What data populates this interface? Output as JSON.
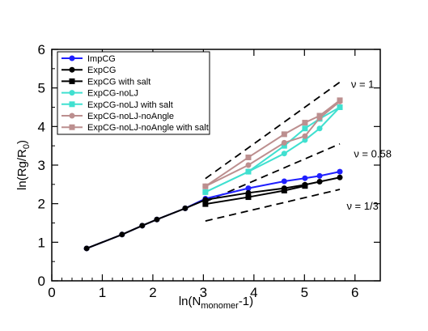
{
  "chart_data": {
    "type": "line",
    "xlim": [
      0,
      6.5
    ],
    "ylim": [
      0,
      6
    ],
    "xticks": [
      0,
      1,
      2,
      3,
      4,
      5,
      6
    ],
    "yticks": [
      0,
      1,
      2,
      3,
      4,
      5,
      6
    ],
    "xlabel": {
      "prefix": "ln(N",
      "sub": "monomer",
      "suffix": "-1)"
    },
    "ylabel": {
      "prefix": "ln(Rg/R",
      "sub": "0",
      "suffix": ")"
    },
    "legend_position": "top-left",
    "grid": false,
    "series": [
      {
        "name": "ImpCG",
        "color": "#1f1fff",
        "marker": "circle",
        "x": [
          0.69,
          1.39,
          1.79,
          2.08,
          2.64,
          3.04,
          3.89,
          4.6,
          5.01,
          5.3,
          5.7
        ],
        "y": [
          0.84,
          1.2,
          1.43,
          1.59,
          1.88,
          2.13,
          2.4,
          2.58,
          2.66,
          2.72,
          2.83
        ]
      },
      {
        "name": "ExpCG",
        "color": "#000000",
        "marker": "circle",
        "x": [
          0.69,
          1.39,
          1.79,
          2.08,
          2.64,
          3.04,
          3.89,
          4.6,
          5.01,
          5.3,
          5.7
        ],
        "y": [
          0.84,
          1.2,
          1.43,
          1.59,
          1.88,
          2.1,
          2.28,
          2.4,
          2.49,
          2.57,
          2.68
        ]
      },
      {
        "name": "ExpCG with salt",
        "color": "#000000",
        "marker": "square",
        "x": [
          3.04,
          3.89,
          4.6,
          5.01
        ],
        "y": [
          1.99,
          2.17,
          2.34,
          2.46
        ]
      },
      {
        "name": "ExpCG-noLJ",
        "color": "#40e0d0",
        "marker": "circle",
        "x": [
          3.04,
          3.89,
          4.6,
          5.01,
          5.3,
          5.7
        ],
        "y": [
          2.3,
          2.83,
          3.3,
          3.65,
          3.95,
          4.5
        ]
      },
      {
        "name": "ExpCG-noLJ with salt",
        "color": "#40e0d0",
        "marker": "square",
        "x": [
          3.04,
          3.89,
          4.6,
          5.01,
          5.3,
          5.7
        ],
        "y": [
          2.3,
          2.83,
          3.5,
          3.95,
          4.2,
          4.5
        ]
      },
      {
        "name": "ExpCG-noLJ-noAngle",
        "color": "#bc8f8f",
        "marker": "circle",
        "x": [
          3.04,
          3.89,
          4.6,
          5.01,
          5.3,
          5.7
        ],
        "y": [
          2.45,
          3.0,
          3.58,
          3.75,
          4.22,
          4.65
        ]
      },
      {
        "name": "ExpCG-noLJ-noAngle with salt",
        "color": "#bc8f8f",
        "marker": "square",
        "x": [
          3.04,
          3.89,
          4.6,
          5.01,
          5.3,
          5.7
        ],
        "y": [
          2.45,
          3.2,
          3.8,
          4.1,
          4.28,
          4.68
        ]
      }
    ],
    "reference_lines": [
      {
        "x": [
          3.04,
          5.7
        ],
        "y": [
          2.65,
          5.15
        ]
      },
      {
        "x": [
          3.04,
          5.7
        ],
        "y": [
          2.05,
          3.55
        ]
      },
      {
        "x": [
          3.04,
          5.7
        ],
        "y": [
          1.55,
          2.37
        ]
      }
    ],
    "annotations": [
      {
        "text": "ν = 1",
        "x": 6.15,
        "y": 5.0
      },
      {
        "text": "ν = 0.58",
        "x": 6.35,
        "y": 3.2
      },
      {
        "text": "ν = 1/3",
        "x": 6.15,
        "y": 1.85
      }
    ]
  }
}
